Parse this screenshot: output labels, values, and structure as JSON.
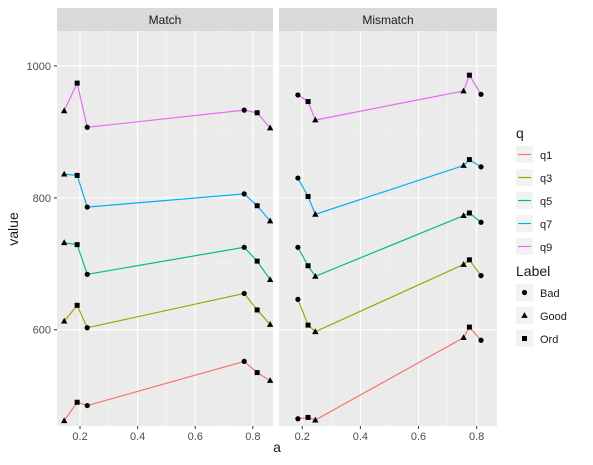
{
  "chart_data": {
    "type": "line",
    "facets": [
      "Match",
      "Mismatch"
    ],
    "xlabel": "a",
    "ylabel": "value",
    "x_ticks": [
      "0.2",
      "0.4",
      "0.6",
      "0.8"
    ],
    "x_tick_values": [
      0.2,
      0.4,
      0.6,
      0.8
    ],
    "y_ticks": [
      "600",
      "800",
      "1000"
    ],
    "y_tick_values": [
      600,
      800,
      1000
    ],
    "xlim": [
      0.12,
      0.87
    ],
    "ylim": [
      454,
      1053
    ],
    "grid": true,
    "legend_color": {
      "title": "q",
      "entries": [
        {
          "name": "q1",
          "color": "#F8766D"
        },
        {
          "name": "q3",
          "color": "#A3A500"
        },
        {
          "name": "q5",
          "color": "#00BF7D"
        },
        {
          "name": "q7",
          "color": "#00B0F6"
        },
        {
          "name": "q9",
          "color": "#E76BF3"
        }
      ]
    },
    "legend_shape": {
      "title": "Label",
      "entries": [
        {
          "name": "Bad",
          "shape": "circle"
        },
        {
          "name": "Good",
          "shape": "triangle"
        },
        {
          "name": "Ord",
          "shape": "square"
        }
      ]
    },
    "series": [
      {
        "facet": "Match",
        "q": "q1",
        "points": [
          {
            "x": 0.145,
            "y": 462,
            "label": "Good"
          },
          {
            "x": 0.19,
            "y": 490,
            "label": "Ord"
          },
          {
            "x": 0.225,
            "y": 485,
            "label": "Bad"
          },
          {
            "x": 0.77,
            "y": 552,
            "label": "Bad"
          },
          {
            "x": 0.815,
            "y": 535,
            "label": "Ord"
          },
          {
            "x": 0.86,
            "y": 523,
            "label": "Good"
          }
        ]
      },
      {
        "facet": "Match",
        "q": "q3",
        "points": [
          {
            "x": 0.145,
            "y": 613,
            "label": "Good"
          },
          {
            "x": 0.19,
            "y": 637,
            "label": "Ord"
          },
          {
            "x": 0.225,
            "y": 603,
            "label": "Bad"
          },
          {
            "x": 0.77,
            "y": 655,
            "label": "Bad"
          },
          {
            "x": 0.815,
            "y": 630,
            "label": "Ord"
          },
          {
            "x": 0.86,
            "y": 608,
            "label": "Good"
          }
        ]
      },
      {
        "facet": "Match",
        "q": "q5",
        "points": [
          {
            "x": 0.145,
            "y": 732,
            "label": "Good"
          },
          {
            "x": 0.19,
            "y": 729,
            "label": "Ord"
          },
          {
            "x": 0.225,
            "y": 684,
            "label": "Bad"
          },
          {
            "x": 0.77,
            "y": 725,
            "label": "Bad"
          },
          {
            "x": 0.815,
            "y": 704,
            "label": "Ord"
          },
          {
            "x": 0.86,
            "y": 676,
            "label": "Good"
          }
        ]
      },
      {
        "facet": "Match",
        "q": "q7",
        "points": [
          {
            "x": 0.145,
            "y": 836,
            "label": "Good"
          },
          {
            "x": 0.19,
            "y": 834,
            "label": "Ord"
          },
          {
            "x": 0.225,
            "y": 786,
            "label": "Bad"
          },
          {
            "x": 0.77,
            "y": 806,
            "label": "Bad"
          },
          {
            "x": 0.815,
            "y": 788,
            "label": "Ord"
          },
          {
            "x": 0.86,
            "y": 765,
            "label": "Good"
          }
        ]
      },
      {
        "facet": "Match",
        "q": "q9",
        "points": [
          {
            "x": 0.145,
            "y": 932,
            "label": "Good"
          },
          {
            "x": 0.19,
            "y": 974,
            "label": "Ord"
          },
          {
            "x": 0.225,
            "y": 907,
            "label": "Bad"
          },
          {
            "x": 0.77,
            "y": 933,
            "label": "Bad"
          },
          {
            "x": 0.815,
            "y": 929,
            "label": "Ord"
          },
          {
            "x": 0.86,
            "y": 906,
            "label": "Good"
          }
        ]
      },
      {
        "facet": "Mismatch",
        "q": "q1",
        "points": [
          {
            "x": 0.185,
            "y": 465,
            "label": "Bad"
          },
          {
            "x": 0.22,
            "y": 467,
            "label": "Ord"
          },
          {
            "x": 0.245,
            "y": 463,
            "label": "Good"
          },
          {
            "x": 0.755,
            "y": 588,
            "label": "Good"
          },
          {
            "x": 0.775,
            "y": 604,
            "label": "Ord"
          },
          {
            "x": 0.815,
            "y": 584,
            "label": "Bad"
          }
        ]
      },
      {
        "facet": "Mismatch",
        "q": "q3",
        "points": [
          {
            "x": 0.185,
            "y": 646,
            "label": "Bad"
          },
          {
            "x": 0.22,
            "y": 607,
            "label": "Ord"
          },
          {
            "x": 0.245,
            "y": 597,
            "label": "Good"
          },
          {
            "x": 0.755,
            "y": 699,
            "label": "Good"
          },
          {
            "x": 0.775,
            "y": 706,
            "label": "Ord"
          },
          {
            "x": 0.815,
            "y": 682,
            "label": "Bad"
          }
        ]
      },
      {
        "facet": "Mismatch",
        "q": "q5",
        "points": [
          {
            "x": 0.185,
            "y": 725,
            "label": "Bad"
          },
          {
            "x": 0.22,
            "y": 697,
            "label": "Ord"
          },
          {
            "x": 0.245,
            "y": 681,
            "label": "Good"
          },
          {
            "x": 0.755,
            "y": 773,
            "label": "Good"
          },
          {
            "x": 0.775,
            "y": 777,
            "label": "Ord"
          },
          {
            "x": 0.815,
            "y": 763,
            "label": "Bad"
          }
        ]
      },
      {
        "facet": "Mismatch",
        "q": "q7",
        "points": [
          {
            "x": 0.185,
            "y": 830,
            "label": "Bad"
          },
          {
            "x": 0.22,
            "y": 802,
            "label": "Ord"
          },
          {
            "x": 0.245,
            "y": 775,
            "label": "Good"
          },
          {
            "x": 0.755,
            "y": 849,
            "label": "Good"
          },
          {
            "x": 0.775,
            "y": 858,
            "label": "Ord"
          },
          {
            "x": 0.815,
            "y": 847,
            "label": "Bad"
          }
        ]
      },
      {
        "facet": "Mismatch",
        "q": "q9",
        "points": [
          {
            "x": 0.185,
            "y": 956,
            "label": "Bad"
          },
          {
            "x": 0.22,
            "y": 946,
            "label": "Ord"
          },
          {
            "x": 0.245,
            "y": 918,
            "label": "Good"
          },
          {
            "x": 0.755,
            "y": 962,
            "label": "Good"
          },
          {
            "x": 0.775,
            "y": 986,
            "label": "Ord"
          },
          {
            "x": 0.815,
            "y": 957,
            "label": "Bad"
          }
        ]
      }
    ]
  }
}
